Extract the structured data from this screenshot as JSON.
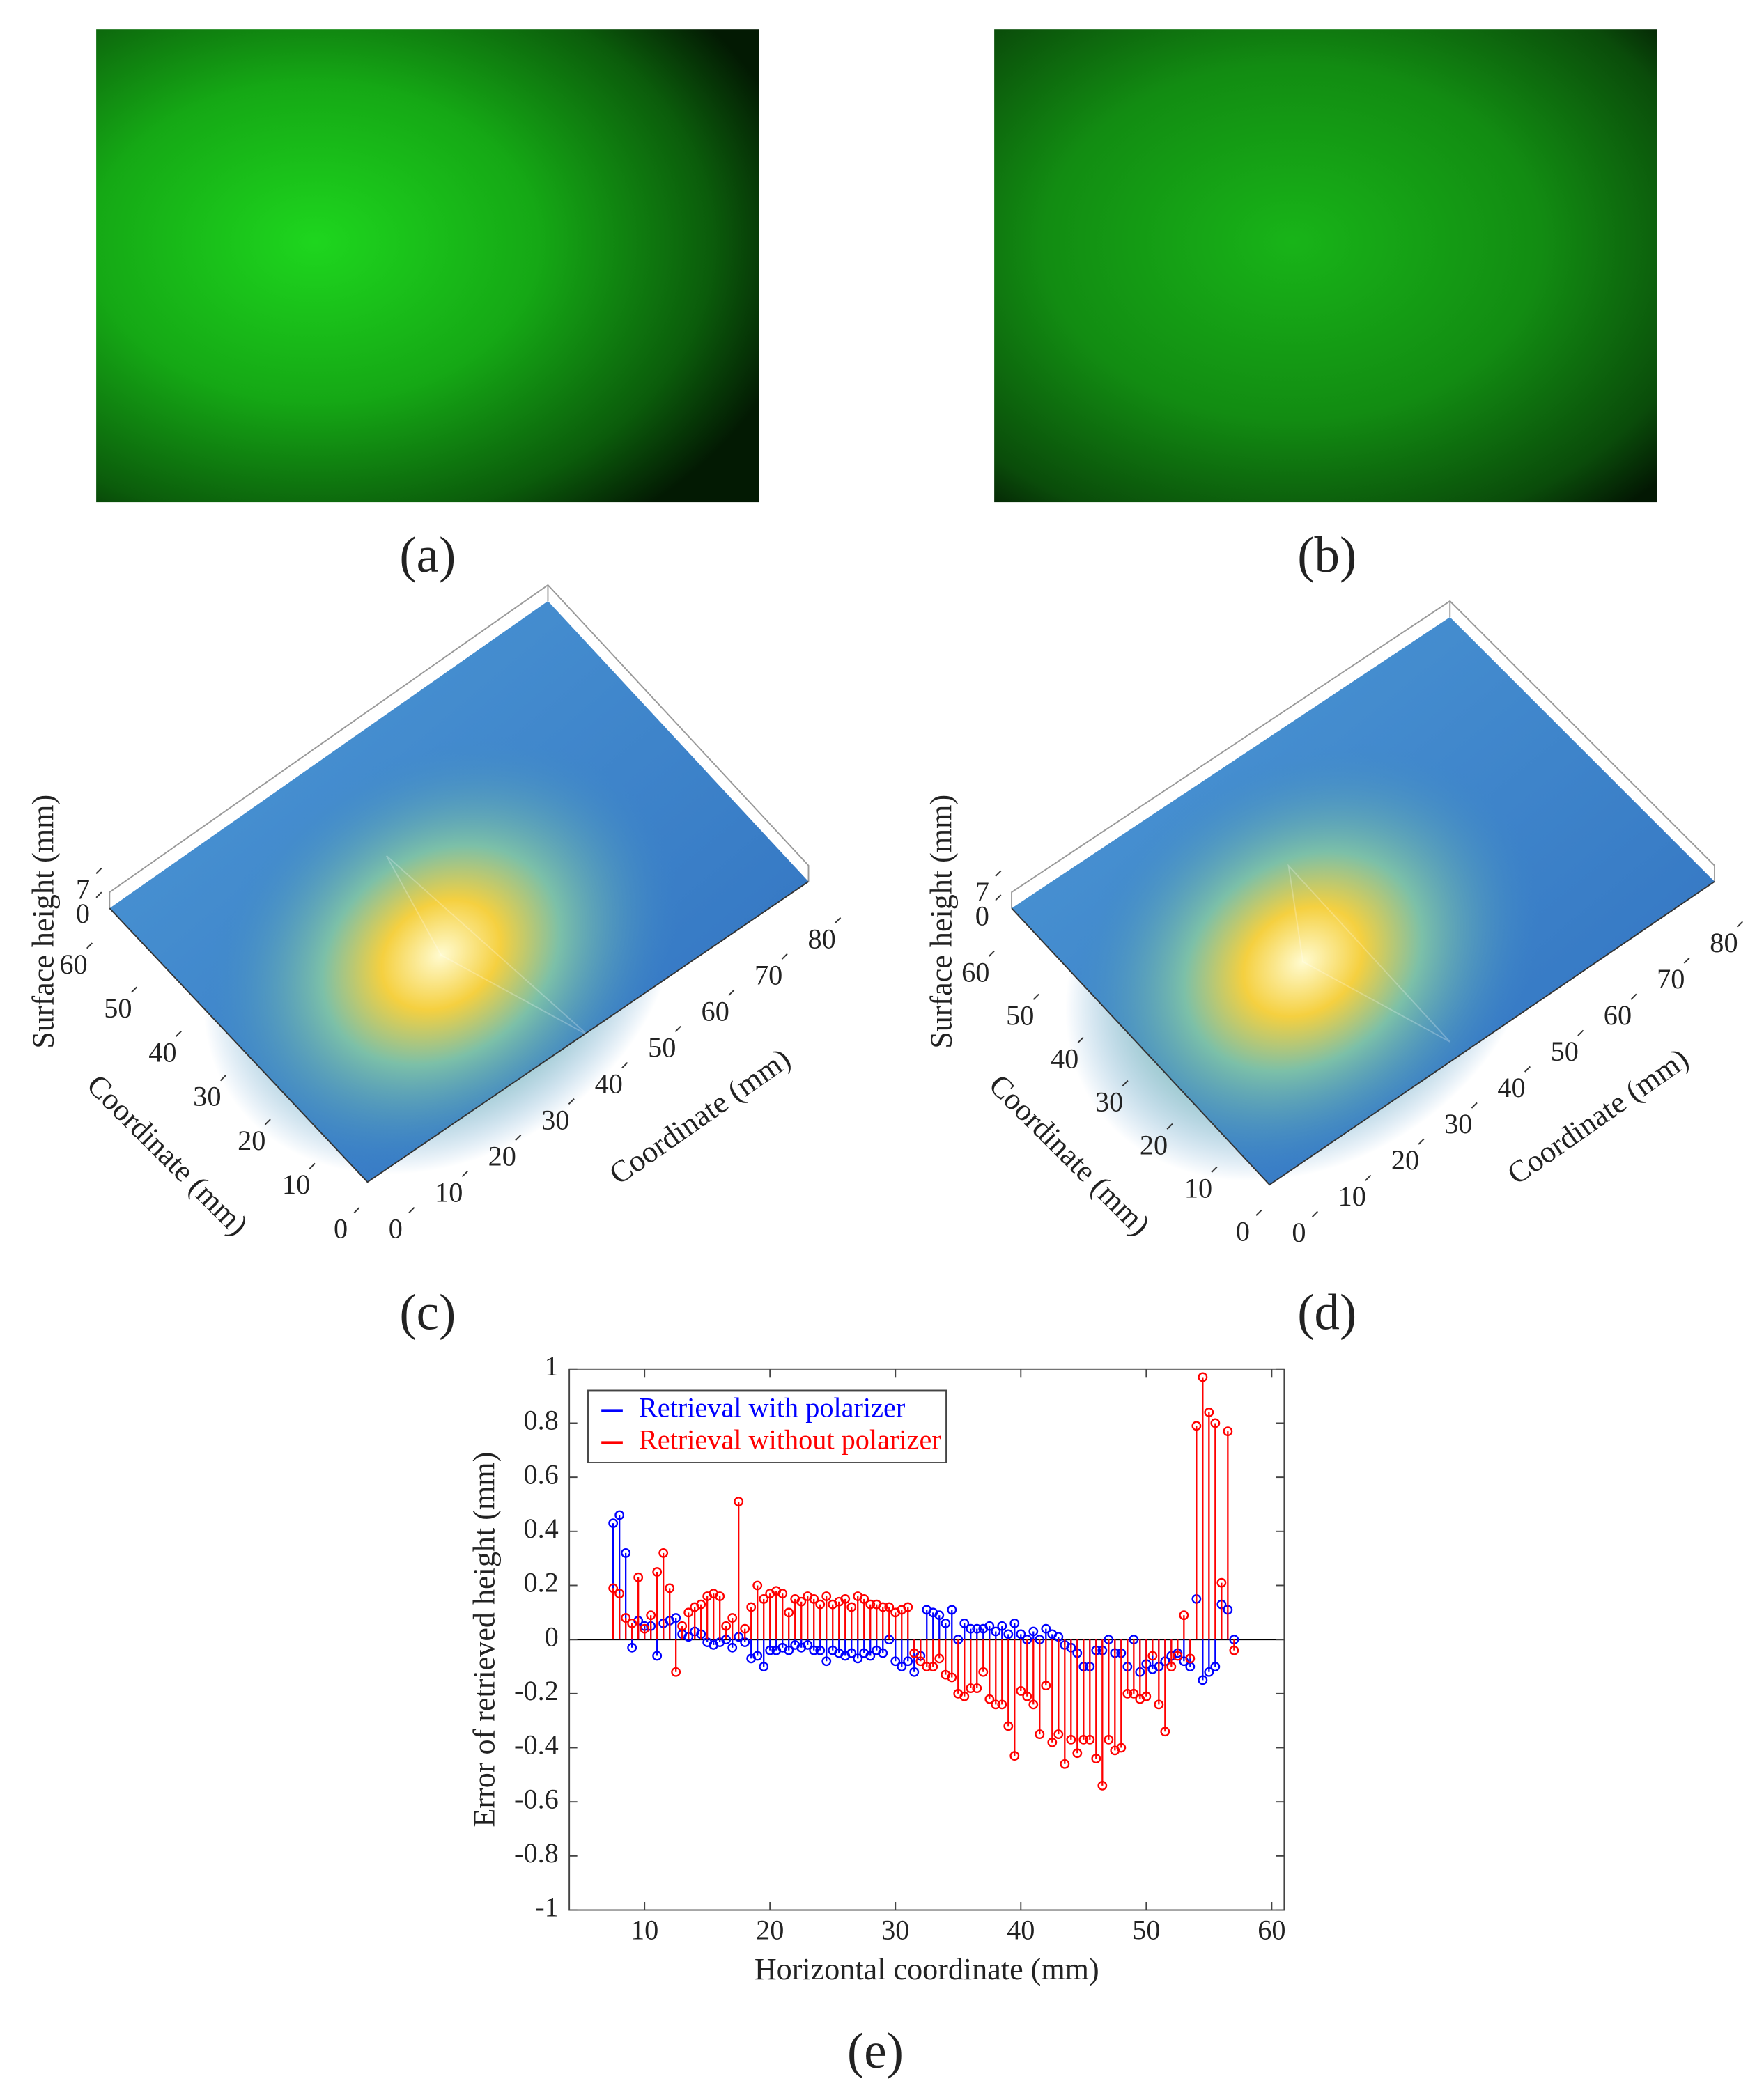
{
  "images": [
    {
      "label": "(a)"
    },
    {
      "label": "(b)"
    }
  ],
  "chart_data": [
    {
      "type": "surface3d",
      "label": "(c)",
      "zlabel": "Surface height (mm)",
      "xlabel": "Coordinate (mm)",
      "ylabel": "Coordinate (mm)",
      "xlim": [
        0,
        80
      ],
      "xticks": [
        0,
        10,
        20,
        30,
        40,
        50,
        60,
        70,
        80
      ],
      "ylim": [
        0,
        60
      ],
      "yticks": [
        0,
        10,
        20,
        30,
        40,
        50,
        60
      ],
      "zlim": [
        0,
        7
      ],
      "zticks": [
        0,
        7
      ]
    },
    {
      "type": "surface3d",
      "label": "(d)",
      "zlabel": "Surface height (mm)",
      "xlabel": "Coordinate (mm)",
      "ylabel": "Coordinate (mm)",
      "xlim": [
        0,
        80
      ],
      "xticks": [
        0,
        10,
        20,
        30,
        40,
        50,
        60,
        70,
        80
      ],
      "ylim": [
        0,
        60
      ],
      "yticks": [
        0,
        10,
        20,
        30,
        40,
        50,
        60
      ],
      "zlim": [
        0,
        7
      ],
      "zticks": [
        0,
        7
      ]
    },
    {
      "type": "stem",
      "label": "(e)",
      "xlabel": "Horizontal coordinate (mm)",
      "ylabel": "Error of retrieved height (mm)",
      "xlim": [
        4,
        61
      ],
      "xticks": [
        10,
        20,
        30,
        40,
        50,
        60
      ],
      "ylim": [
        -1,
        1
      ],
      "yticks": [
        -1,
        -0.8,
        -0.6,
        -0.4,
        -0.2,
        0,
        0.2,
        0.4,
        0.6,
        0.8,
        1
      ],
      "legend": "upper left",
      "x": [
        7.5,
        8,
        8.5,
        9,
        9.5,
        10,
        10.5,
        11,
        11.5,
        12,
        12.5,
        13,
        13.5,
        14,
        14.5,
        15,
        15.5,
        16,
        16.5,
        17,
        17.5,
        18,
        18.5,
        19,
        19.5,
        20,
        20.5,
        21,
        21.5,
        22,
        22.5,
        23,
        23.5,
        24,
        24.5,
        25,
        25.5,
        26,
        26.5,
        27,
        27.5,
        28,
        28.5,
        29,
        29.5,
        30,
        30.5,
        31,
        31.5,
        32,
        32.5,
        33,
        33.5,
        34,
        34.5,
        35,
        35.5,
        36,
        36.5,
        37,
        37.5,
        38,
        38.5,
        39,
        39.5,
        40,
        40.5,
        41,
        41.5,
        42,
        42.5,
        43,
        43.5,
        44,
        44.5,
        45,
        45.5,
        46,
        46.5,
        47,
        47.5,
        48,
        48.5,
        49,
        49.5,
        50,
        50.5,
        51,
        51.5,
        52,
        52.5,
        53,
        53.5,
        54,
        54.5,
        55,
        55.5,
        56,
        56.5,
        57
      ],
      "series": [
        {
          "name": "Retrieval with polarizer",
          "color": "#0000ff",
          "values": [
            0.43,
            0.46,
            0.32,
            -0.03,
            0.07,
            0.05,
            0.05,
            -0.06,
            0.06,
            0.07,
            0.08,
            0.02,
            0.01,
            0.03,
            0.02,
            -0.01,
            -0.02,
            -0.01,
            0.0,
            -0.03,
            0.01,
            -0.01,
            -0.07,
            -0.06,
            -0.1,
            -0.04,
            -0.04,
            -0.03,
            -0.04,
            -0.02,
            -0.03,
            -0.02,
            -0.04,
            -0.04,
            -0.08,
            -0.04,
            -0.05,
            -0.06,
            -0.05,
            -0.07,
            -0.05,
            -0.06,
            -0.04,
            -0.05,
            0.0,
            -0.08,
            -0.1,
            -0.08,
            -0.12,
            -0.06,
            0.11,
            0.1,
            0.09,
            0.06,
            0.11,
            0.0,
            0.06,
            0.04,
            0.04,
            0.04,
            0.05,
            0.03,
            0.05,
            0.02,
            0.06,
            0.02,
            0.0,
            0.03,
            0.0,
            0.04,
            0.02,
            0.01,
            -0.02,
            -0.03,
            -0.05,
            -0.1,
            -0.1,
            -0.04,
            -0.04,
            0.0,
            -0.05,
            -0.05,
            -0.1,
            0.0,
            -0.12,
            -0.09,
            -0.11,
            -0.1,
            -0.08,
            -0.06,
            -0.05,
            -0.08,
            -0.1,
            0.15,
            -0.15,
            -0.12,
            -0.1,
            0.13,
            0.11,
            0.0
          ]
        },
        {
          "name": "Retrieval without polarizer",
          "color": "#ff0000",
          "values": [
            0.19,
            0.17,
            0.08,
            0.06,
            0.23,
            0.04,
            0.09,
            0.25,
            0.32,
            0.19,
            -0.12,
            0.05,
            0.1,
            0.12,
            0.13,
            0.16,
            0.17,
            0.16,
            0.05,
            0.08,
            0.51,
            0.04,
            0.12,
            0.2,
            0.15,
            0.17,
            0.18,
            0.17,
            0.1,
            0.15,
            0.14,
            0.16,
            0.15,
            0.13,
            0.16,
            0.13,
            0.14,
            0.15,
            0.12,
            0.16,
            0.15,
            0.13,
            0.13,
            0.12,
            0.12,
            0.1,
            0.11,
            0.12,
            -0.05,
            -0.08,
            -0.1,
            -0.1,
            -0.07,
            -0.13,
            -0.14,
            -0.2,
            -0.21,
            -0.18,
            -0.18,
            -0.12,
            -0.22,
            -0.24,
            -0.24,
            -0.32,
            -0.43,
            -0.19,
            -0.21,
            -0.24,
            -0.35,
            -0.17,
            -0.38,
            -0.35,
            -0.46,
            -0.37,
            -0.42,
            -0.37,
            -0.37,
            -0.44,
            -0.54,
            -0.37,
            -0.41,
            -0.4,
            -0.2,
            -0.2,
            -0.22,
            -0.21,
            -0.06,
            -0.24,
            -0.34,
            -0.1,
            -0.06,
            0.09,
            -0.07,
            0.79,
            0.97,
            0.84,
            0.8,
            0.21,
            0.77,
            -0.04
          ]
        }
      ]
    }
  ]
}
